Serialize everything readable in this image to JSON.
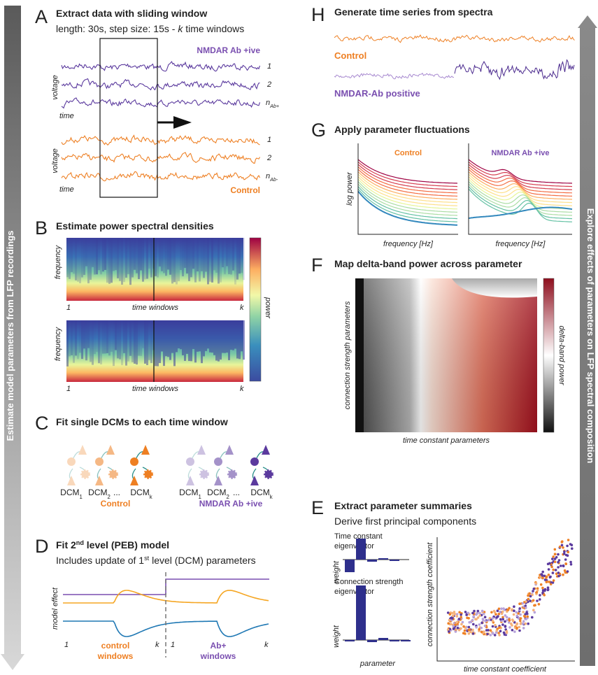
{
  "left_arrow": "Estimate model parameters from LFP recordings",
  "right_arrow": "Explore effects of parameters on LFP spectral composition",
  "a": {
    "letter": "A",
    "title": "Extract data with sliding window",
    "subtitle": [
      "length: 30s, step size: 15s - ",
      "k",
      " time windows"
    ],
    "groups": [
      {
        "name": "NMDAR Ab +ive",
        "rows": [
          "1",
          "2"
        ],
        "n": "n",
        "n_sub": "Ab+",
        "y_label": "voltage",
        "x_label": "time"
      },
      {
        "name": "Control",
        "rows": [
          "1",
          "2"
        ],
        "n": "n",
        "n_sub": "Ab-",
        "y_label": "voltage",
        "x_label": "time"
      }
    ]
  },
  "b": {
    "letter": "B",
    "title": "Estimate power spectral densities",
    "plots": [
      {
        "y_label": "frequency",
        "x_start": "1",
        "x_label": "time windows",
        "x_end": "k"
      },
      {
        "y_label": "frequency",
        "x_start": "1",
        "x_label": "time windows",
        "x_end": "k"
      }
    ],
    "colorbar": "power"
  },
  "c": {
    "letter": "C",
    "title": "Fit single DCMs to each time window",
    "groups": [
      {
        "name": "Control",
        "models": [
          {
            "text": "DCM",
            "sub": "1"
          },
          {
            "text": "DCM",
            "sub": "2"
          },
          {
            "text": "DCM",
            "sub": "k"
          }
        ],
        "ellipsis": "..."
      },
      {
        "name": "NMDAR Ab +ive",
        "models": [
          {
            "text": "DCM",
            "sub": "1"
          },
          {
            "text": "DCM",
            "sub": "2"
          },
          {
            "text": "DCM",
            "sub": "k"
          }
        ],
        "ellipsis": "..."
      }
    ]
  },
  "d": {
    "letter": "D",
    "title": [
      "Fit 2",
      "nd",
      " level (PEB) model"
    ],
    "subtitle": [
      "Includes update of 1",
      "st",
      " level (DCM) parameters"
    ],
    "y_label": "model effect",
    "segments": [
      {
        "start": "1",
        "name": [
          "control",
          "windows"
        ],
        "end": "k"
      },
      {
        "start": "1",
        "name": [
          "Ab+",
          "windows"
        ],
        "end": "k"
      }
    ]
  },
  "e": {
    "letter": "E",
    "title": "Extract parameter summaries",
    "subtitle": "Derive first principal components",
    "bars": [
      {
        "title": [
          "Time constant",
          "eigenvector"
        ],
        "y_label": "weight"
      },
      {
        "title": [
          "Connection strength",
          "eigenvector"
        ],
        "y_label": "weight"
      }
    ],
    "bar_x_label": "parameter",
    "scatter": {
      "y_label": "connection strength coefficient",
      "x_label": "time constant coefficient"
    }
  },
  "f": {
    "letter": "F",
    "title": "Map delta-band power across parameter",
    "y_label": "connection strength parameters",
    "x_label": "time constant parameters",
    "colorbar": "delta-band power"
  },
  "g": {
    "letter": "G",
    "title": "Apply parameter fluctuations",
    "y_label": "log power",
    "plots": [
      {
        "name": "Control",
        "x_label": "frequency [Hz]"
      },
      {
        "name": "NMDAR Ab +ive",
        "x_label": "frequency [Hz]"
      }
    ]
  },
  "h": {
    "letter": "H",
    "title": "Generate time series from spectra",
    "series": [
      "Control",
      "NMDAR-Ab positive"
    ]
  }
}
